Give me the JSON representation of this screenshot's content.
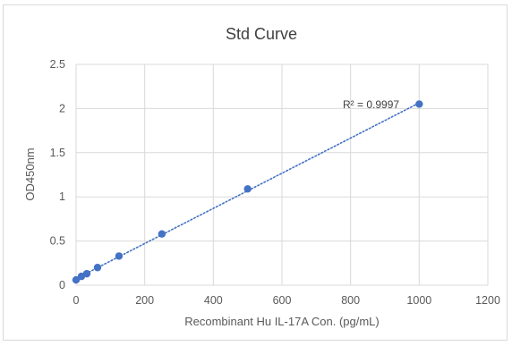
{
  "chart_data": {
    "type": "scatter",
    "title": "Std Curve",
    "xlabel": "Recombinant Hu IL-17A Con. (pg/mL)",
    "ylabel": "OD450nm",
    "xlim": [
      0,
      1200
    ],
    "ylim": [
      0,
      2.5
    ],
    "xticks": [
      0,
      200,
      400,
      600,
      800,
      1000,
      1200
    ],
    "yticks": [
      0,
      0.5,
      1,
      1.5,
      2,
      2.5
    ],
    "xtick_labels": [
      "0",
      "200",
      "400",
      "600",
      "800",
      "1000",
      "1200"
    ],
    "ytick_labels": [
      "0",
      "0.5",
      "1",
      "1.5",
      "2",
      "2.5"
    ],
    "grid": true,
    "legend": "none",
    "marker_color": "#4472c4",
    "trendline": {
      "type": "linear",
      "style": "dotted",
      "color": "#4472c4",
      "r_squared_label": "R² = 0.9997"
    },
    "series": [
      {
        "x": [
          0,
          15.6,
          31.25,
          62.5,
          125,
          250,
          500,
          1000
        ],
        "y": [
          0.06,
          0.1,
          0.13,
          0.2,
          0.33,
          0.58,
          1.09,
          2.05
        ]
      }
    ]
  }
}
